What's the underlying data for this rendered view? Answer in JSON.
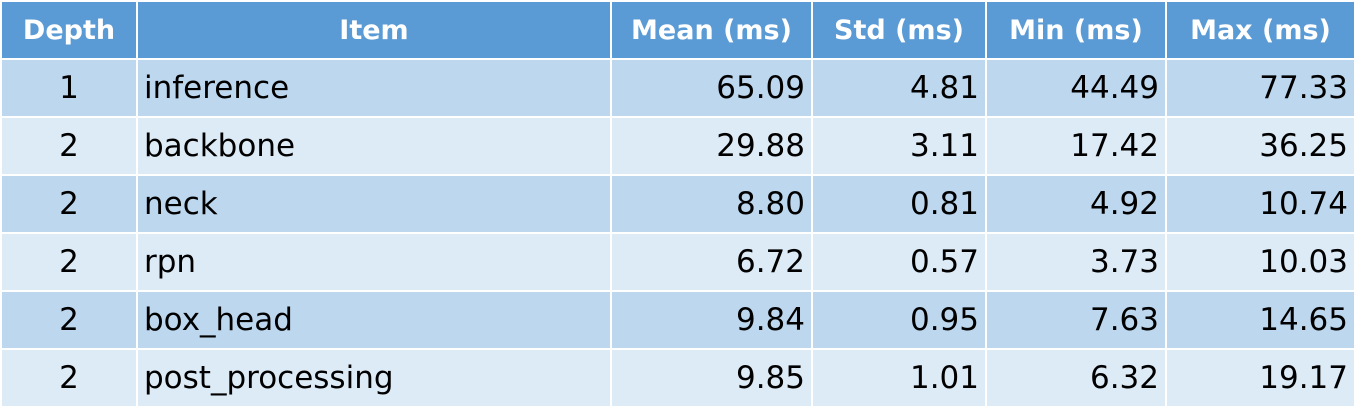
{
  "colors": {
    "header_bg": "#5b9bd5",
    "header_text": "#ffffff",
    "row_odd": "#bdd7ee",
    "row_even": "#ddebf7",
    "grid": "#ffffff"
  },
  "table": {
    "headers": {
      "depth": "Depth",
      "item": "Item",
      "mean": "Mean (ms)",
      "std": "Std (ms)",
      "min": "Min (ms)",
      "max": "Max (ms)"
    },
    "rows": [
      {
        "depth": "1",
        "item": "inference",
        "mean": "65.09",
        "std": "4.81",
        "min": "44.49",
        "max": "77.33"
      },
      {
        "depth": "2",
        "item": "backbone",
        "mean": "29.88",
        "std": "3.11",
        "min": "17.42",
        "max": "36.25"
      },
      {
        "depth": "2",
        "item": "neck",
        "mean": "8.80",
        "std": "0.81",
        "min": "4.92",
        "max": "10.74"
      },
      {
        "depth": "2",
        "item": "rpn",
        "mean": "6.72",
        "std": "0.57",
        "min": "3.73",
        "max": "10.03"
      },
      {
        "depth": "2",
        "item": "box_head",
        "mean": "9.84",
        "std": "0.95",
        "min": "7.63",
        "max": "14.65"
      },
      {
        "depth": "2",
        "item": "post_processing",
        "mean": "9.85",
        "std": "1.01",
        "min": "6.32",
        "max": "19.17"
      }
    ]
  }
}
